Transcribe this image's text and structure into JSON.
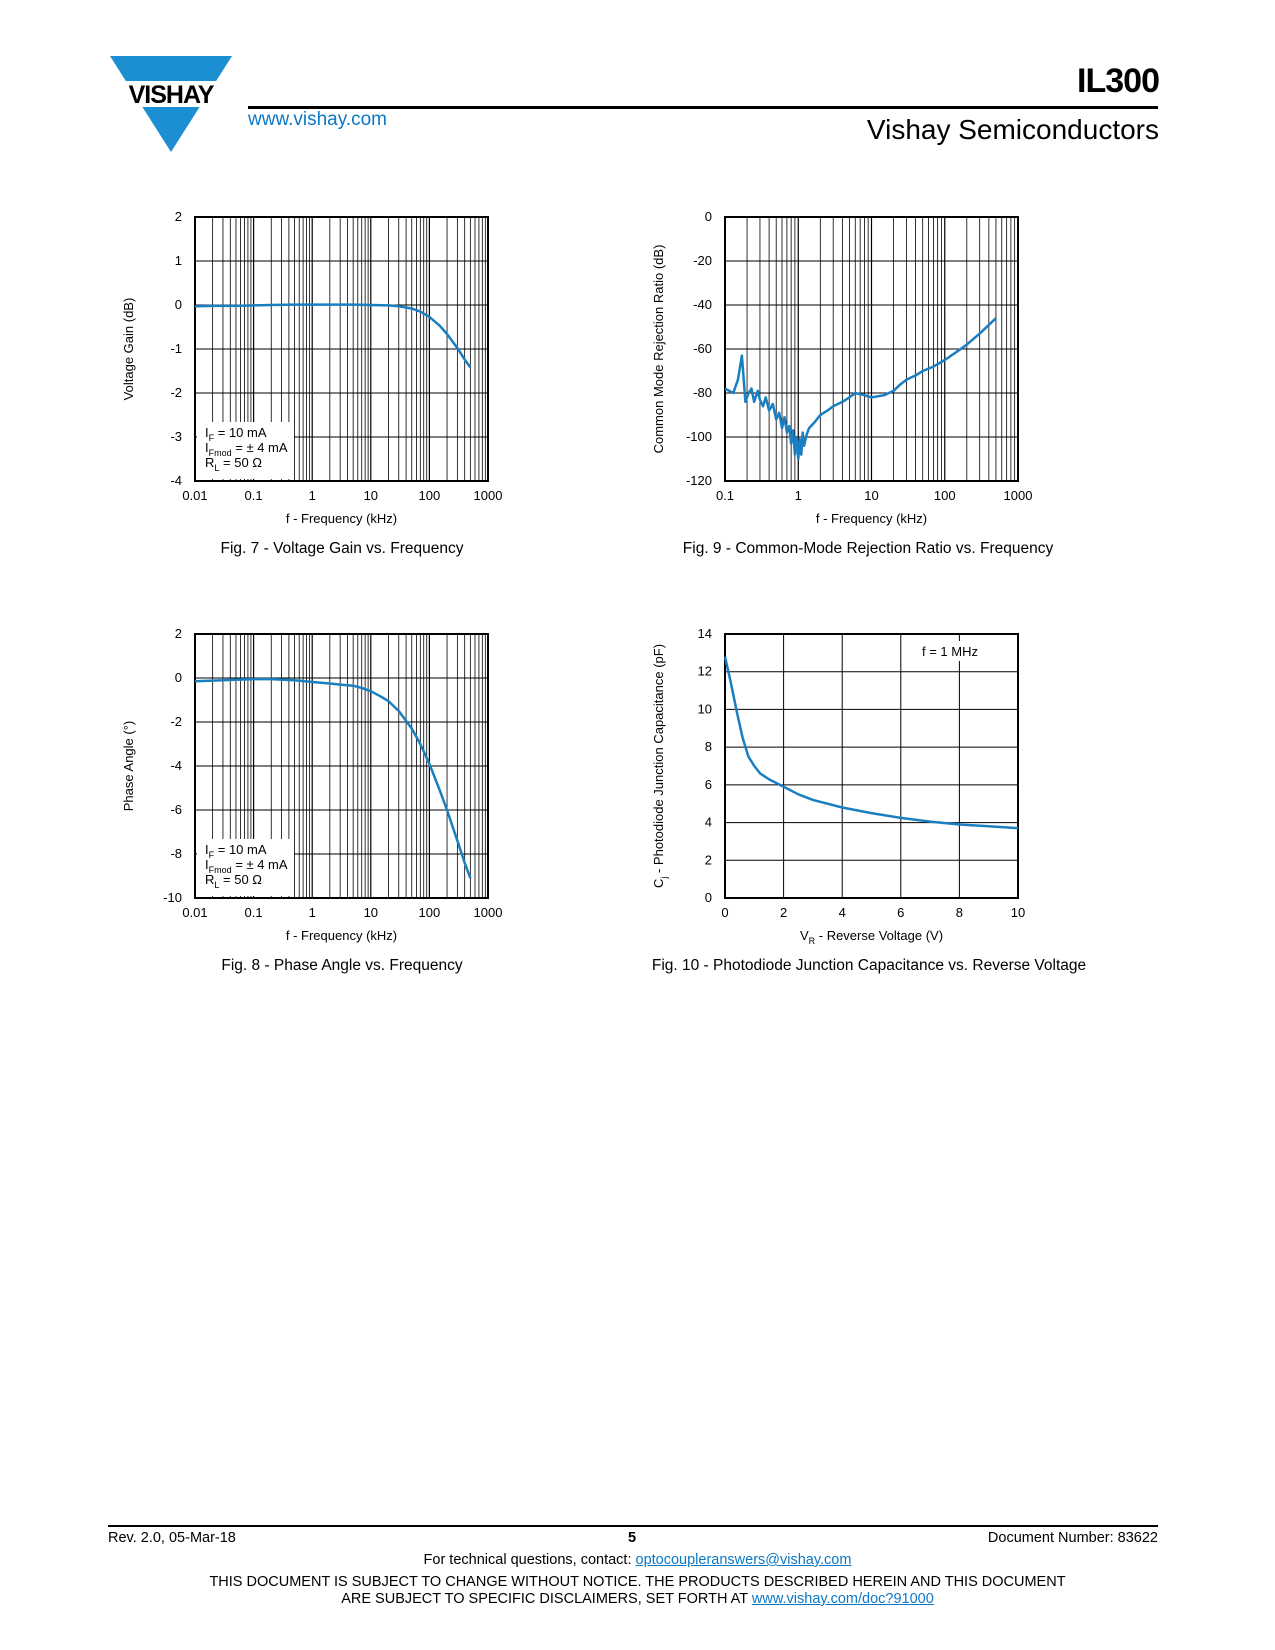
{
  "header": {
    "brand": "VISHAY",
    "website": "www.vishay.com",
    "part_number": "IL300",
    "division": "Vishay Semiconductors"
  },
  "colors": {
    "accent": "#0b78c4",
    "logo_blue": "#1b8fd2",
    "curve": "#1a7fc1"
  },
  "figures": {
    "fig7": {
      "caption": "Fig. 7 - Voltage Gain vs. Frequency"
    },
    "fig9": {
      "caption": "Fig. 9 - Common-Mode Rejection Ratio vs. Frequency"
    },
    "fig8": {
      "caption": "Fig. 8 - Phase Angle vs. Frequency"
    },
    "fig10": {
      "caption": "Fig. 10 - Photodiode Junction Capacitance vs. Reverse Voltage"
    }
  },
  "chart_data": [
    {
      "id": "fig7",
      "type": "line",
      "x_scale": "log",
      "xlim": [
        0.01,
        1000
      ],
      "ylim": [
        -4,
        2
      ],
      "x_ticks": [
        "0.01",
        "0.1",
        "1",
        "10",
        "100",
        "1000"
      ],
      "y_ticks": [
        "2",
        "1",
        "0",
        "-1",
        "-2",
        "-3",
        "-4"
      ],
      "xlabel": "f - Frequency (kHz)",
      "ylabel": "Voltage Gain (dB)",
      "annotation": [
        {
          "main": "I",
          "sub": "F",
          "rest": " = 10 mA"
        },
        {
          "main": "I",
          "sub": "Fmod",
          "rest": " = ± 4 mA"
        },
        {
          "main": "R",
          "sub": "L",
          "rest": " = 50 Ω"
        }
      ],
      "series": [
        {
          "name": "Voltage Gain",
          "x": [
            0.01,
            0.02,
            0.05,
            0.1,
            0.2,
            0.5,
            1,
            2,
            5,
            10,
            20,
            30,
            50,
            70,
            100,
            150,
            200,
            300,
            400,
            500
          ],
          "y": [
            -0.03,
            -0.02,
            -0.02,
            -0.01,
            0.0,
            0.01,
            0.01,
            0.01,
            0.01,
            0.0,
            -0.01,
            -0.03,
            -0.08,
            -0.15,
            -0.27,
            -0.47,
            -0.66,
            -0.98,
            -1.24,
            -1.42
          ]
        }
      ]
    },
    {
      "id": "fig9",
      "type": "line",
      "x_scale": "log",
      "xlim": [
        0.1,
        1000
      ],
      "ylim": [
        -120,
        0
      ],
      "x_ticks": [
        "0.1",
        "1",
        "10",
        "100",
        "1000"
      ],
      "y_ticks": [
        "0",
        "-20",
        "-40",
        "-60",
        "-80",
        "-100",
        "-120"
      ],
      "xlabel": "f - Frequency (kHz)",
      "ylabel": "Common Mode Rejection Ratio (dB)",
      "series": [
        {
          "name": "CMRR",
          "x": [
            0.1,
            0.13,
            0.15,
            0.17,
            0.19,
            0.21,
            0.23,
            0.25,
            0.28,
            0.3,
            0.33,
            0.36,
            0.4,
            0.45,
            0.5,
            0.55,
            0.6,
            0.65,
            0.7,
            0.75,
            0.8,
            0.85,
            0.9,
            0.95,
            1.0,
            1.05,
            1.1,
            1.15,
            1.2,
            1.3,
            1.4,
            1.5,
            1.7,
            2.0,
            2.5,
            3,
            4,
            5,
            6,
            8,
            10,
            15,
            20,
            25,
            30,
            40,
            50,
            70,
            100,
            150,
            200,
            300,
            500
          ],
          "y": [
            -78,
            -80,
            -74,
            -63,
            -84,
            -80,
            -78,
            -84,
            -79,
            -83,
            -86,
            -82,
            -88,
            -85,
            -92,
            -89,
            -96,
            -91,
            -98,
            -95,
            -103,
            -97,
            -108,
            -100,
            -110,
            -101,
            -108,
            -98,
            -104,
            -99,
            -96,
            -95,
            -93,
            -90,
            -88,
            -86,
            -84,
            -82,
            -80,
            -81,
            -82,
            -81,
            -79,
            -76,
            -74,
            -72,
            -70,
            -68,
            -65,
            -61,
            -58,
            -53,
            -46
          ]
        }
      ]
    },
    {
      "id": "fig8",
      "type": "line",
      "x_scale": "log",
      "xlim": [
        0.01,
        1000
      ],
      "ylim": [
        -10,
        2
      ],
      "x_ticks": [
        "0.01",
        "0.1",
        "1",
        "10",
        "100",
        "1000"
      ],
      "y_ticks": [
        "2",
        "0",
        "-2",
        "-4",
        "-6",
        "-8",
        "-10"
      ],
      "xlabel": "f - Frequency (kHz)",
      "ylabel": "Phase Angle (°)",
      "annotation": [
        {
          "main": "I",
          "sub": "F",
          "rest": " = 10 mA"
        },
        {
          "main": "I",
          "sub": "Fmod",
          "rest": " = ± 4 mA"
        },
        {
          "main": "R",
          "sub": "L",
          "rest": " = 50 Ω"
        }
      ],
      "series": [
        {
          "name": "Phase Angle",
          "x": [
            0.01,
            0.02,
            0.05,
            0.1,
            0.2,
            0.5,
            1,
            2,
            3,
            5,
            7,
            10,
            15,
            20,
            30,
            50,
            70,
            100,
            150,
            200,
            300,
            400,
            500
          ],
          "y": [
            -0.15,
            -0.12,
            -0.08,
            -0.05,
            -0.05,
            -0.1,
            -0.18,
            -0.25,
            -0.3,
            -0.35,
            -0.45,
            -0.6,
            -0.85,
            -1.05,
            -1.5,
            -2.3,
            -3.0,
            -3.9,
            -5.1,
            -6.0,
            -7.4,
            -8.4,
            -9.1
          ]
        }
      ]
    },
    {
      "id": "fig10",
      "type": "line",
      "x_scale": "linear",
      "xlim": [
        0,
        10
      ],
      "ylim": [
        0,
        14
      ],
      "x_ticks": [
        "0",
        "2",
        "4",
        "6",
        "8",
        "10"
      ],
      "y_ticks": [
        "14",
        "12",
        "10",
        "8",
        "6",
        "4",
        "2",
        "0"
      ],
      "xlabel": {
        "main": "V",
        "sub": "R",
        "rest": " - Reverse Voltage (V)"
      },
      "ylabel": {
        "main": "C",
        "sub": "j",
        "rest": " - Photodiode Junction Capacitance (pF)"
      },
      "annotation": [
        "f = 1 MHz"
      ],
      "series": [
        {
          "name": "Cj",
          "x": [
            0,
            0.2,
            0.4,
            0.6,
            0.8,
            1.0,
            1.2,
            1.5,
            2,
            2.5,
            3,
            4,
            5,
            6,
            7,
            8,
            9,
            10
          ],
          "y": [
            12.8,
            11.4,
            9.9,
            8.5,
            7.5,
            7.0,
            6.6,
            6.3,
            5.9,
            5.5,
            5.2,
            4.8,
            4.5,
            4.25,
            4.05,
            3.9,
            3.8,
            3.7
          ]
        }
      ]
    }
  ],
  "footer": {
    "revision": "Rev. 2.0, 05-Mar-18",
    "page_number": "5",
    "document_number": "Document Number: 83622",
    "contact_prefix": "For technical questions, contact: ",
    "contact_email": "optocoupleranswers@vishay.com",
    "disclaimer_line1": "THIS DOCUMENT IS SUBJECT TO CHANGE WITHOUT NOTICE. THE PRODUCTS DESCRIBED HEREIN AND THIS DOCUMENT",
    "disclaimer_line2_prefix": "ARE SUBJECT TO SPECIFIC DISCLAIMERS, SET FORTH AT ",
    "disclaimer_link": "www.vishay.com/doc?91000"
  }
}
